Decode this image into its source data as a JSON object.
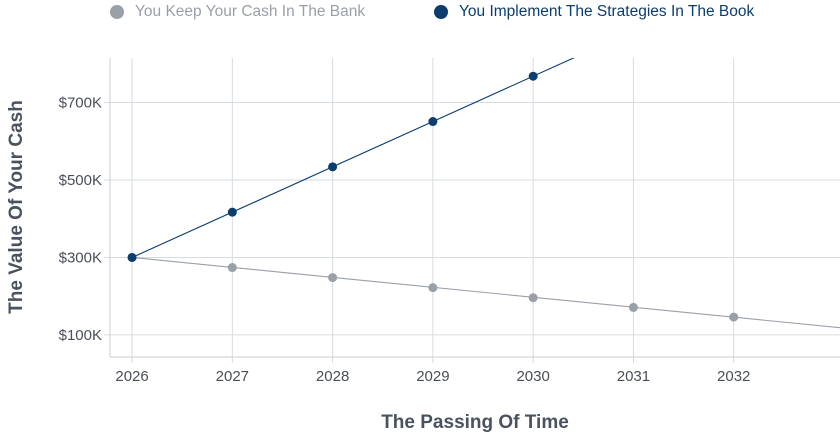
{
  "chart_data": {
    "type": "line",
    "title": "",
    "xlabel": "The Passing Of Time",
    "ylabel": "The Value Of Your Cash",
    "x": [
      2026,
      2027,
      2028,
      2029,
      2030,
      2031,
      2032
    ],
    "x_tick_labels": [
      "2026",
      "2027",
      "2028",
      "2029",
      "2030",
      "2031",
      "2032"
    ],
    "y_ticks": [
      100000,
      300000,
      500000,
      700000
    ],
    "y_tick_labels": [
      "$100K",
      "$300K",
      "$500K",
      "$700K"
    ],
    "xlim": [
      2025.78,
      2033.06
    ],
    "ylim": [
      43000,
      815000
    ],
    "grid": true,
    "legend_position": "top",
    "series": [
      {
        "name": "You Keep Your Cash In The Bank",
        "color": "#9aa0a8",
        "values": [
          300000,
          274000,
          248000,
          222000,
          196000,
          171000,
          146000
        ],
        "trend_slope_per_year": -25700
      },
      {
        "name": "You Implement The Strategies In The Book",
        "color": "#0b3d6e",
        "values": [
          300000,
          417000,
          534000,
          651000,
          768000,
          null,
          null
        ],
        "trend_slope_per_year": 117000
      }
    ]
  }
}
